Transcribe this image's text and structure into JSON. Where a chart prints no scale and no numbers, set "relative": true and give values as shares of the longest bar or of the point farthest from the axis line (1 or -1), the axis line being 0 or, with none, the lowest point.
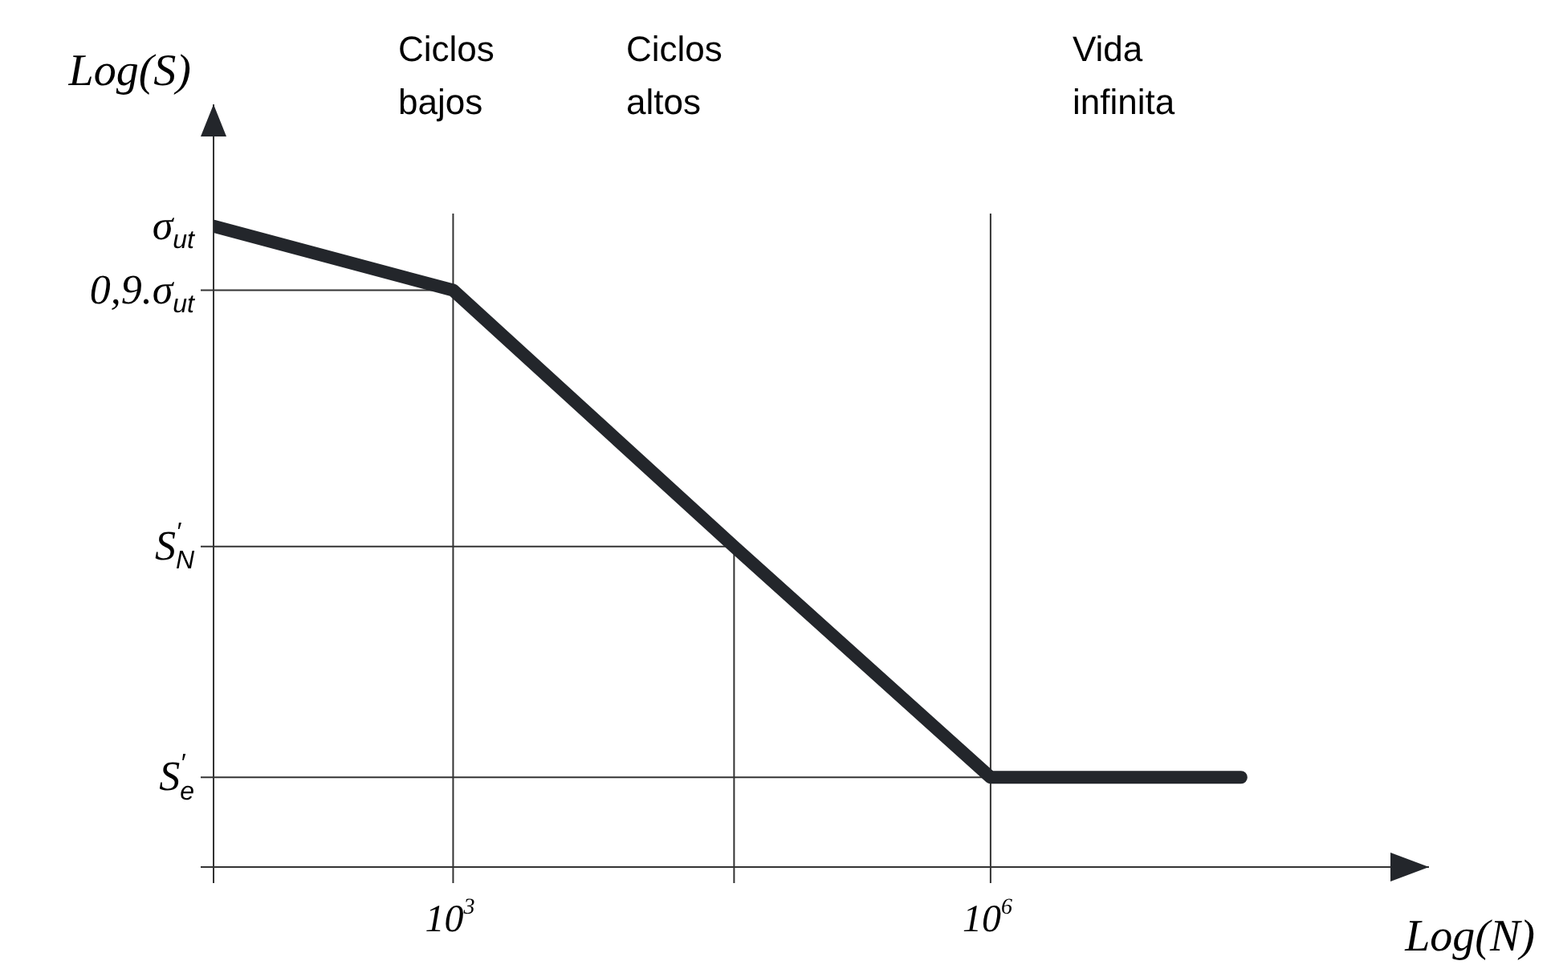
{
  "chart_data": {
    "type": "line",
    "relative": true,
    "log": "x",
    "color": "#23262b",
    "xlabel": "Log(N)",
    "ylabel": "Log(S)",
    "x": [
      46,
      1000,
      37000,
      1000000,
      25000000
    ],
    "values": [
      1,
      0.9,
      0.5,
      0.14,
      0.14
    ],
    "xlim": [
      46,
      280000000
    ],
    "xticks": [
      {
        "value": 1000,
        "label": "10$^{3}$"
      },
      {
        "value": 1000000,
        "label": "10$^{6}$"
      }
    ],
    "ref_lines": [
      {
        "axis": "y",
        "value": 0.9,
        "label": "0,9.σ$_{ut}$"
      },
      {
        "axis": "y",
        "value": 0.5,
        "label": "S$^{′}$$_{N}$"
      },
      {
        "axis": "y",
        "value": 0.14,
        "label": "S$^{′}$$_{e}$"
      },
      {
        "axis": "x",
        "value": 37000
      },
      {
        "axis": "x",
        "value": 1000
      },
      {
        "axis": "x",
        "value": 1000000
      }
    ],
    "annotations": [
      {
        "text": "σ$_{ut}$",
        "x": 46,
        "y": 1
      },
      "Ciclos bajos",
      "Ciclos altos",
      "Vida infinita"
    ]
  }
}
